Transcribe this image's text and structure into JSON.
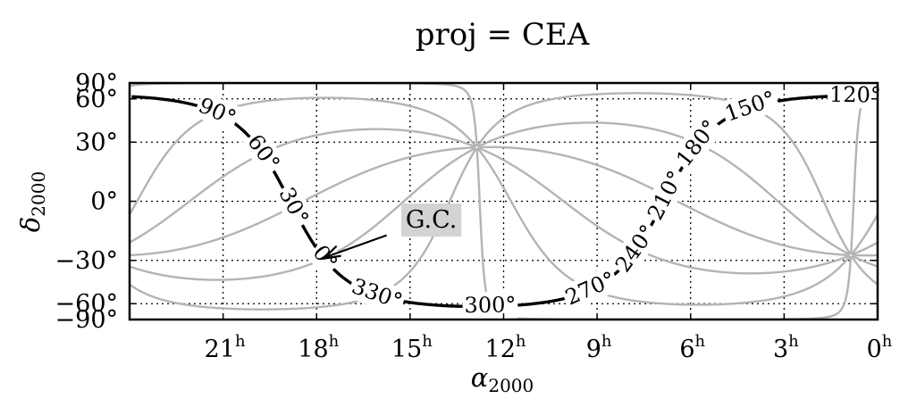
{
  "chart_data": {
    "type": "line",
    "title": "proj = CEA",
    "xlabel": "α2000",
    "ylabel": "δ2000",
    "projection": "cylindrical equal area",
    "x_axis_direction": "right-to-left",
    "xlim_hours": [
      24,
      0
    ],
    "ylim_deg": [
      -90,
      90
    ],
    "x_ticks": [
      {
        "value": 21,
        "label": "21",
        "sup": "h"
      },
      {
        "value": 18,
        "label": "18",
        "sup": "h"
      },
      {
        "value": 15,
        "label": "15",
        "sup": "h"
      },
      {
        "value": 12,
        "label": "12",
        "sup": "h"
      },
      {
        "value": 9,
        "label": "9",
        "sup": "h"
      },
      {
        "value": 6,
        "label": "6",
        "sup": "h"
      },
      {
        "value": 3,
        "label": "3",
        "sup": "h"
      },
      {
        "value": 0,
        "label": "0",
        "sup": "h"
      }
    ],
    "y_ticks": [
      {
        "value": 90,
        "label": "90°"
      },
      {
        "value": 60,
        "label": "60°"
      },
      {
        "value": 30,
        "label": "30°"
      },
      {
        "value": 0,
        "label": "0°"
      },
      {
        "value": -30,
        "label": "−30°"
      },
      {
        "value": -60,
        "label": "−60°"
      },
      {
        "value": -90,
        "label": "−90°"
      }
    ],
    "grid": true,
    "grid_style": "dotted",
    "galactic_plane_color": "#000000",
    "meridian_color": "#b4b4b4",
    "galactic_north_pole": {
      "ra_hours": 12.857,
      "dec_deg": 27.13
    },
    "galactic_south_pole": {
      "ra_hours": 0.857,
      "dec_deg": -27.13
    },
    "galactic_longitude_labels": [
      "0°",
      "30°",
      "60°",
      "90°",
      "120°",
      "150°",
      "180°",
      "210°",
      "240°",
      "270°",
      "300°",
      "330°"
    ],
    "annotation": {
      "text": "G.C.",
      "ra_hours": 17.76,
      "dec_deg": -28.94,
      "box_color": "#d3d3d3"
    }
  }
}
